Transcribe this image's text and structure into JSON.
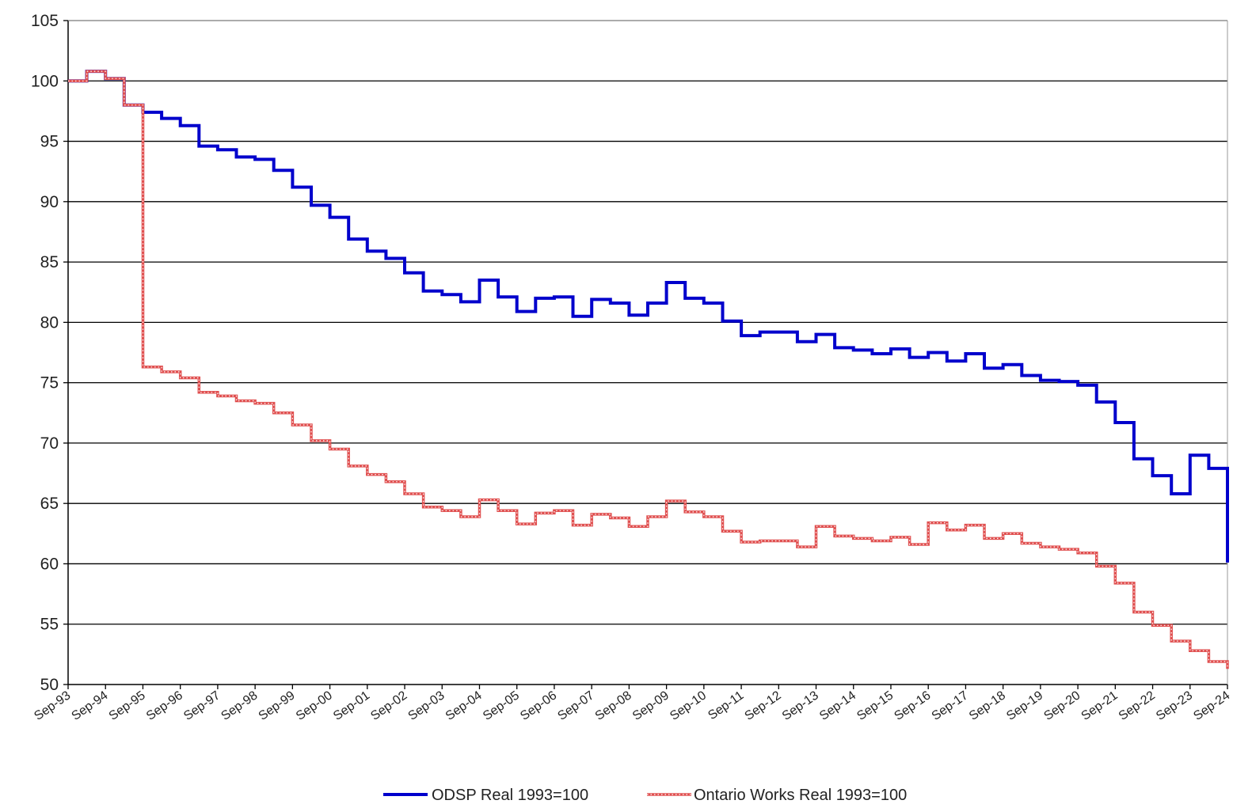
{
  "chart_data": {
    "type": "line",
    "step": true,
    "title": "",
    "xlabel": "",
    "ylabel": "",
    "ylim": [
      50,
      105
    ],
    "ytick_step": 5,
    "grid": "horizontal",
    "legend_position": "bottom",
    "categories": [
      "Sep-93",
      "Sep-94",
      "Sep-95",
      "Sep-96",
      "Sep-97",
      "Sep-98",
      "Sep-99",
      "Sep-00",
      "Sep-01",
      "Sep-02",
      "Sep-03",
      "Sep-04",
      "Sep-05",
      "Sep-06",
      "Sep-07",
      "Sep-08",
      "Sep-09",
      "Sep-10",
      "Sep-11",
      "Sep-12",
      "Sep-13",
      "Sep-14",
      "Sep-15",
      "Sep-16",
      "Sep-17",
      "Sep-18",
      "Sep-19",
      "Sep-20",
      "Sep-21",
      "Sep-22",
      "Sep-23",
      "Sep-24"
    ],
    "series": [
      {
        "name": "ODSP Real 1993=100",
        "color": "#0000cc",
        "style": "solid",
        "x": [
          1993.67,
          1994.17,
          1994.67,
          1995.17,
          1995.67,
          1996.17,
          1996.67,
          1997.17,
          1997.67,
          1998.17,
          1998.67,
          1999.17,
          1999.67,
          2000.17,
          2000.67,
          2001.17,
          2001.67,
          2002.17,
          2002.67,
          2003.17,
          2003.67,
          2004.17,
          2004.67,
          2005.17,
          2005.67,
          2006.17,
          2006.67,
          2007.17,
          2007.67,
          2008.17,
          2008.67,
          2009.17,
          2009.67,
          2010.17,
          2010.67,
          2011.17,
          2011.67,
          2012.17,
          2012.67,
          2013.17,
          2013.67,
          2014.17,
          2014.67,
          2015.17,
          2015.67,
          2016.17,
          2016.67,
          2017.17,
          2017.67,
          2018.17,
          2018.67,
          2019.17,
          2019.67,
          2020.17,
          2020.67,
          2021.17,
          2021.67,
          2022.17,
          2022.67,
          2023.17,
          2023.67,
          2024.17,
          2024.67
        ],
        "y": [
          100.0,
          100.8,
          100.2,
          98.0,
          97.4,
          96.9,
          96.3,
          94.6,
          94.3,
          93.7,
          93.5,
          92.6,
          91.2,
          89.7,
          88.7,
          86.9,
          85.9,
          85.3,
          84.1,
          82.6,
          82.3,
          81.7,
          83.5,
          82.1,
          80.9,
          82.0,
          82.1,
          80.5,
          81.9,
          81.6,
          80.6,
          81.6,
          83.3,
          82.0,
          81.6,
          80.1,
          78.9,
          79.2,
          79.2,
          78.4,
          79.0,
          77.9,
          77.7,
          77.4,
          77.8,
          77.1,
          77.5,
          76.8,
          77.4,
          76.2,
          76.5,
          75.6,
          75.2,
          75.1,
          74.8,
          73.4,
          71.7,
          68.7,
          67.3,
          65.8,
          69.0,
          67.9,
          60.1
        ]
      },
      {
        "name": "Ontario Works Real 1993=100",
        "color": "#e05050",
        "style": "dotted",
        "x": [
          1993.67,
          1994.17,
          1994.67,
          1995.17,
          1995.67,
          1996.17,
          1996.67,
          1997.17,
          1997.67,
          1998.17,
          1998.67,
          1999.17,
          1999.67,
          2000.17,
          2000.67,
          2001.17,
          2001.67,
          2002.17,
          2002.67,
          2003.17,
          2003.67,
          2004.17,
          2004.67,
          2005.17,
          2005.67,
          2006.17,
          2006.67,
          2007.17,
          2007.67,
          2008.17,
          2008.67,
          2009.17,
          2009.67,
          2010.17,
          2010.67,
          2011.17,
          2011.67,
          2012.17,
          2012.67,
          2013.17,
          2013.67,
          2014.17,
          2014.67,
          2015.17,
          2015.67,
          2016.17,
          2016.67,
          2017.17,
          2017.67,
          2018.17,
          2018.67,
          2019.17,
          2019.67,
          2020.17,
          2020.67,
          2021.17,
          2021.67,
          2022.17,
          2022.67,
          2023.17,
          2023.67,
          2024.17,
          2024.67
        ],
        "y": [
          100.0,
          100.8,
          100.2,
          98.0,
          76.3,
          75.9,
          75.4,
          74.2,
          73.9,
          73.5,
          73.3,
          72.5,
          71.5,
          70.2,
          69.5,
          68.1,
          67.4,
          66.8,
          65.8,
          64.7,
          64.4,
          63.9,
          65.3,
          64.4,
          63.3,
          64.2,
          64.4,
          63.2,
          64.1,
          63.8,
          63.1,
          63.9,
          65.2,
          64.3,
          63.9,
          62.7,
          61.8,
          61.9,
          61.9,
          61.4,
          63.1,
          62.3,
          62.1,
          61.9,
          62.2,
          61.6,
          63.4,
          62.8,
          63.2,
          62.1,
          62.5,
          61.7,
          61.4,
          61.2,
          60.9,
          59.8,
          58.4,
          56.0,
          54.9,
          53.6,
          52.8,
          51.9,
          51.3
        ]
      }
    ]
  }
}
